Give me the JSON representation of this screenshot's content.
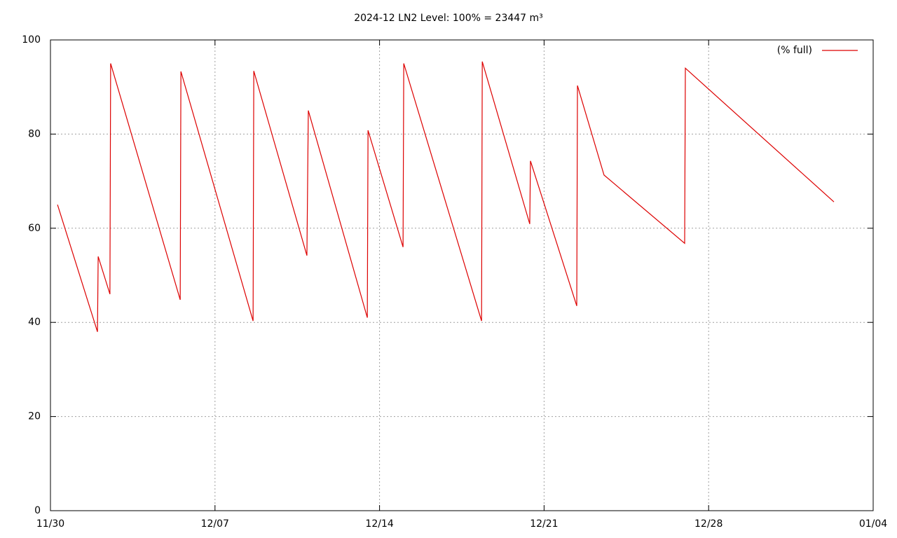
{
  "chart_data": {
    "type": "line",
    "title": "2024-12 LN2 Level: 100% = 23447 m³",
    "x": [
      0.3,
      2.0,
      2.03,
      2.53,
      2.56,
      5.52,
      5.55,
      8.62,
      8.65,
      10.91,
      10.97,
      13.48,
      13.51,
      15.0,
      15.03,
      18.34,
      18.37,
      20.39,
      20.42,
      22.39,
      22.42,
      23.55,
      26.98,
      27.01,
      33.33
    ],
    "series": [
      {
        "name": "(% full)",
        "color": "#dd0000",
        "values": [
          65,
          38,
          54,
          46,
          95,
          44.8,
          93.3,
          40.3,
          93.4,
          54.2,
          85,
          41,
          80.8,
          56,
          95,
          40.3,
          95.4,
          60.9,
          74.3,
          43.5,
          90.3,
          71.3,
          56.8,
          94,
          65.6
        ]
      }
    ],
    "xlim": [
      0,
      35
    ],
    "xticks": [
      {
        "value": 0,
        "label": "11/30"
      },
      {
        "value": 7,
        "label": "12/07"
      },
      {
        "value": 14,
        "label": "12/14"
      },
      {
        "value": 21,
        "label": "12/21"
      },
      {
        "value": 28,
        "label": "12/28"
      },
      {
        "value": 35,
        "label": "01/04"
      }
    ],
    "ylim": [
      0,
      100
    ],
    "yticks": [
      0,
      20,
      40,
      60,
      80,
      100
    ],
    "grid": true,
    "legend": "top-right"
  }
}
